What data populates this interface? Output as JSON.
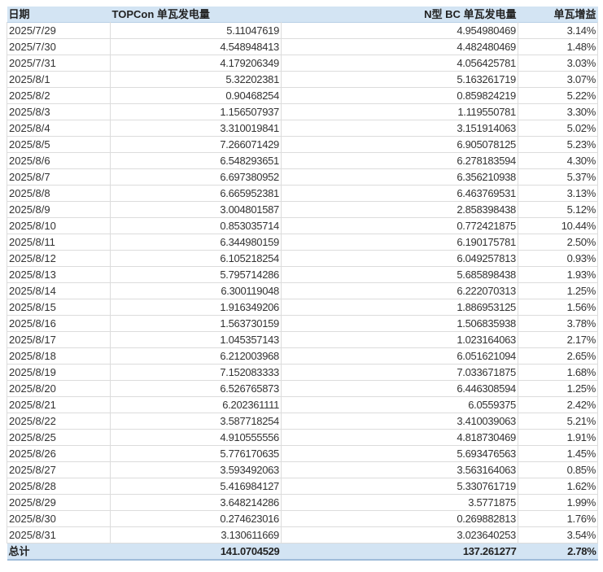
{
  "table": {
    "headers": [
      "日期",
      "TOPCon  单瓦发电量",
      "N型 BC 单瓦发电量",
      "单瓦增益"
    ],
    "rows": [
      [
        "2025/7/29",
        "5.11047619",
        "4.954980469",
        "3.14%"
      ],
      [
        "2025/7/30",
        "4.548948413",
        "4.482480469",
        "1.48%"
      ],
      [
        "2025/7/31",
        "4.179206349",
        "4.056425781",
        "3.03%"
      ],
      [
        "2025/8/1",
        "5.32202381",
        "5.163261719",
        "3.07%"
      ],
      [
        "2025/8/2",
        "0.90468254",
        "0.859824219",
        "5.22%"
      ],
      [
        "2025/8/3",
        "1.156507937",
        "1.119550781",
        "3.30%"
      ],
      [
        "2025/8/4",
        "3.310019841",
        "3.151914063",
        "5.02%"
      ],
      [
        "2025/8/5",
        "7.266071429",
        "6.905078125",
        "5.23%"
      ],
      [
        "2025/8/6",
        "6.548293651",
        "6.278183594",
        "4.30%"
      ],
      [
        "2025/8/7",
        "6.697380952",
        "6.356210938",
        "5.37%"
      ],
      [
        "2025/8/8",
        "6.665952381",
        "6.463769531",
        "3.13%"
      ],
      [
        "2025/8/9",
        "3.004801587",
        "2.858398438",
        "5.12%"
      ],
      [
        "2025/8/10",
        "0.853035714",
        "0.772421875",
        "10.44%"
      ],
      [
        "2025/8/11",
        "6.344980159",
        "6.190175781",
        "2.50%"
      ],
      [
        "2025/8/12",
        "6.105218254",
        "6.049257813",
        "0.93%"
      ],
      [
        "2025/8/13",
        "5.795714286",
        "5.685898438",
        "1.93%"
      ],
      [
        "2025/8/14",
        "6.300119048",
        "6.222070313",
        "1.25%"
      ],
      [
        "2025/8/15",
        "1.916349206",
        "1.886953125",
        "1.56%"
      ],
      [
        "2025/8/16",
        "1.563730159",
        "1.506835938",
        "3.78%"
      ],
      [
        "2025/8/17",
        "1.045357143",
        "1.023164063",
        "2.17%"
      ],
      [
        "2025/8/18",
        "6.212003968",
        "6.051621094",
        "2.65%"
      ],
      [
        "2025/8/19",
        "7.152083333",
        "7.033671875",
        "1.68%"
      ],
      [
        "2025/8/20",
        "6.526765873",
        "6.446308594",
        "1.25%"
      ],
      [
        "2025/8/21",
        "6.202361111",
        "6.0559375",
        "2.42%"
      ],
      [
        "2025/8/22",
        "3.587718254",
        "3.410039063",
        "5.21%"
      ],
      [
        "2025/8/25",
        "4.910555556",
        "4.818730469",
        "1.91%"
      ],
      [
        "2025/8/26",
        "5.776170635",
        "5.693476563",
        "1.45%"
      ],
      [
        "2025/8/27",
        "3.593492063",
        "3.563164063",
        "0.85%"
      ],
      [
        "2025/8/28",
        "5.416984127",
        "5.330761719",
        "1.62%"
      ],
      [
        "2025/8/29",
        "3.648214286",
        "3.5771875",
        "1.99%"
      ],
      [
        "2025/8/30",
        "0.274623016",
        "0.269882813",
        "1.76%"
      ],
      [
        "2025/8/31",
        "3.130611669",
        "3.023640253",
        "3.54%"
      ]
    ],
    "total": [
      "总计",
      "141.0704529",
      "137.261277",
      "2.78%"
    ]
  },
  "colors": {
    "header_bg": "#d3e4f3",
    "grid": "#dcdcdc"
  }
}
